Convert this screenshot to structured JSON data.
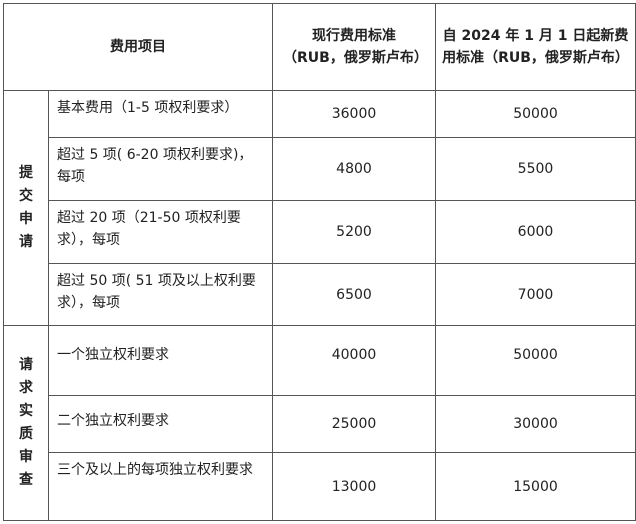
{
  "header": {
    "item": "费用项目",
    "current": "现行费用标准（RUB，俄罗斯卢布）",
    "new": "自 2024 年 1 月 1 日起新费用标准（RUB，俄罗斯卢布）"
  },
  "groups": [
    {
      "label": "提交申请",
      "rows": [
        {
          "item": "基本费用（1-5 项权利要求）",
          "current": "36000",
          "new": "50000"
        },
        {
          "item": "超过 5 项( 6-20 项权利要求)，每项",
          "current": "4800",
          "new": "5500"
        },
        {
          "item": "超过 20 项（21-50 项权利要求），每项",
          "current": "5200",
          "new": "6000"
        },
        {
          "item": "超过 50 项( 51 项及以上权利要求），每项",
          "current": "6500",
          "new": "7000"
        }
      ]
    },
    {
      "label": "请求实质审查",
      "rows": [
        {
          "item": "一个独立权利要求",
          "current": "40000",
          "new": "50000"
        },
        {
          "item": "二个独立权利要求",
          "current": "25000",
          "new": "30000"
        },
        {
          "item": "三个及以上的每项独立权利要求",
          "current": "13000",
          "new": "15000"
        }
      ]
    }
  ]
}
